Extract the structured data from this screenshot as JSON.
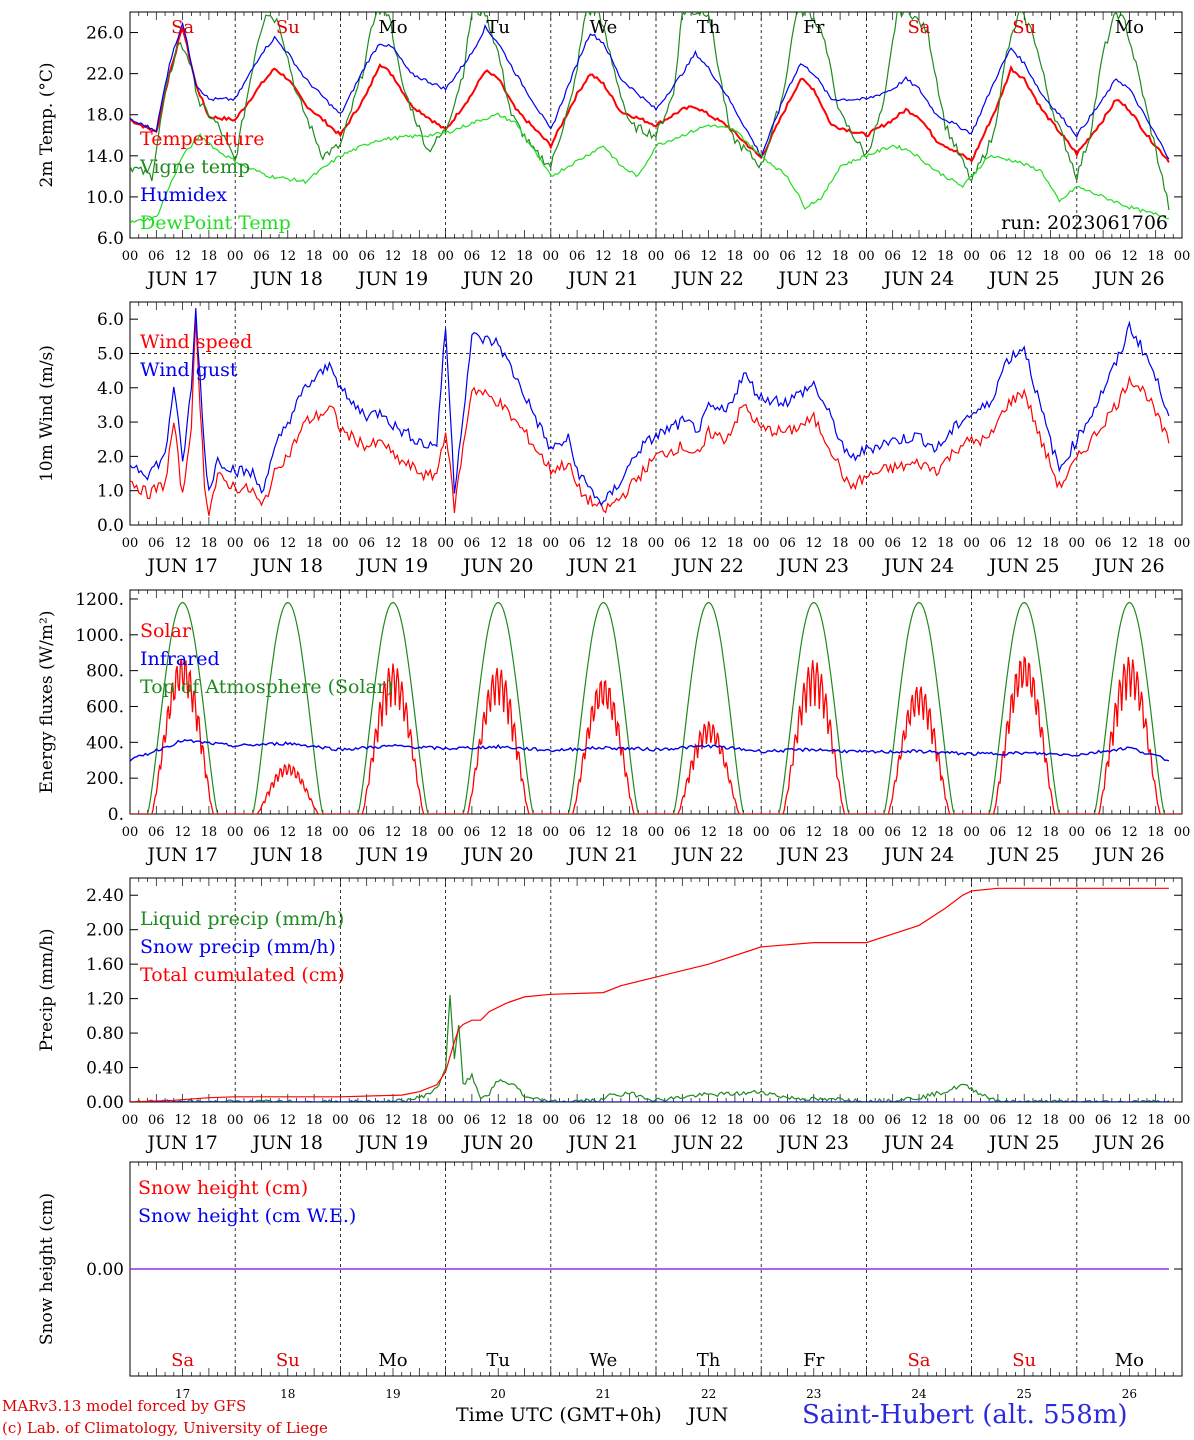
{
  "run_label": "run: 2023061706",
  "hour_ticks": [
    "00",
    "06",
    "12",
    "18"
  ],
  "last_tick": "00",
  "days": [
    "JUN 17",
    "JUN 18",
    "JUN 19",
    "JUN 20",
    "JUN 21",
    "JUN 22",
    "JUN 23",
    "JUN 24",
    "JUN 25",
    "JUN 26"
  ],
  "weekdays": [
    "Sa",
    "Su",
    "Mo",
    "Tu",
    "We",
    "Th",
    "Fr",
    "Sa",
    "Su",
    "Mo"
  ],
  "weekday_colors": [
    "#e00000",
    "#e00000",
    "#000000",
    "#000000",
    "#000000",
    "#000000",
    "#000000",
    "#e00000",
    "#e00000",
    "#000000"
  ],
  "day_numbers": [
    "17",
    "18",
    "19",
    "20",
    "21",
    "22",
    "23",
    "24",
    "25",
    "26"
  ],
  "colors": {
    "red": "#ff0000",
    "green": "#1f8a1f",
    "blue": "#0000ee",
    "lightgreen": "#22dd22",
    "purple": "#8a2be2"
  },
  "footer": {
    "credit_line1": "MARv3.13 model forced by GFS",
    "credit_line2": "(c) Lab. of Climatology, University of Liege",
    "x_title": "Time UTC (GMT+0h)",
    "x_month": "JUN",
    "station": "Saint-Hubert (alt. 558m)"
  },
  "chart_data": [
    {
      "type": "line",
      "ylabel": "2m Temp. (°C)",
      "ylim": [
        6,
        28
      ],
      "yticks": [
        "6.0",
        "10.0",
        "14.0",
        "18.0",
        "22.0",
        "26.0"
      ],
      "x_unit": "hours since Jun 17 00 UTC",
      "series": [
        {
          "name": "Temperature",
          "color": "red",
          "x": [
            0,
            6,
            9,
            12,
            15,
            18,
            24,
            30,
            33,
            36,
            40,
            48,
            54,
            57,
            60,
            64,
            72,
            78,
            81,
            84,
            88,
            96,
            102,
            105,
            108,
            112,
            120,
            126,
            129,
            132,
            136,
            144,
            150,
            153,
            156,
            160,
            168,
            174,
            177,
            180,
            184,
            192,
            198,
            201,
            204,
            208,
            216,
            222,
            225,
            228,
            232,
            237
          ],
          "y": [
            17.5,
            16.3,
            22,
            26.5,
            21,
            17.8,
            17.5,
            21,
            22.5,
            21.5,
            19,
            16,
            20,
            23,
            21.8,
            19,
            16.5,
            20,
            22.3,
            21.5,
            18.5,
            15,
            20,
            22,
            21,
            18.3,
            17,
            18.5,
            18.8,
            18,
            17,
            13.8,
            19,
            21.5,
            20.5,
            17,
            16,
            17.5,
            18.5,
            17.8,
            15.5,
            13.5,
            19,
            22.5,
            21.5,
            18.5,
            14.2,
            17.5,
            19.5,
            18.5,
            16,
            13.5
          ]
        },
        {
          "name": "Vigne temp",
          "color": "green",
          "x": [
            0,
            5,
            8,
            11,
            13,
            16,
            20,
            24,
            29,
            31,
            34,
            38,
            44,
            48,
            53,
            56,
            59,
            62,
            68,
            72,
            76,
            78,
            81,
            84,
            87,
            92,
            96,
            101,
            104,
            107,
            110,
            114,
            120,
            124,
            126,
            129,
            132,
            137,
            144,
            149,
            152,
            155,
            158,
            162,
            168,
            172,
            175,
            178,
            182,
            186,
            192,
            197,
            200,
            203,
            206,
            210,
            216,
            219,
            222,
            225,
            227,
            230,
            237
          ],
          "y": [
            13,
            12,
            20,
            25,
            24,
            19,
            17,
            13.5,
            25,
            28,
            27,
            20,
            14,
            15,
            22,
            28,
            28,
            21,
            14.5,
            16.5,
            22,
            28,
            28,
            24,
            18,
            14.5,
            13,
            20,
            28,
            28,
            23,
            17,
            16,
            20,
            28,
            28,
            28,
            16,
            13,
            20,
            28,
            28,
            26,
            18,
            14,
            19,
            28,
            28,
            26,
            17,
            11.5,
            16,
            24,
            28,
            26,
            19,
            12,
            16,
            24,
            28,
            27,
            22,
            9
          ]
        },
        {
          "name": "Humidex",
          "color": "blue",
          "x": [
            0,
            6,
            9,
            12,
            15,
            18,
            24,
            30,
            33,
            36,
            40,
            48,
            54,
            57,
            60,
            64,
            72,
            78,
            81,
            84,
            88,
            96,
            102,
            105,
            108,
            112,
            120,
            126,
            129,
            132,
            136,
            144,
            150,
            153,
            156,
            160,
            168,
            174,
            177,
            180,
            184,
            192,
            198,
            201,
            204,
            208,
            216,
            222,
            225,
            228,
            232,
            237
          ],
          "y": [
            17.5,
            16.5,
            23,
            27,
            21,
            19.5,
            19.5,
            24,
            25.5,
            24,
            21.5,
            18,
            23,
            25,
            24.5,
            22,
            20.5,
            24,
            26.5,
            25,
            22,
            16.5,
            23,
            26,
            25,
            21.5,
            18.5,
            22,
            24,
            22.5,
            20,
            14,
            20.5,
            23,
            22,
            19.5,
            19.5,
            20.5,
            21.5,
            20.5,
            18,
            16.2,
            22,
            24.5,
            23,
            20,
            16,
            19.5,
            21.5,
            20.5,
            17.5,
            13.8
          ]
        },
        {
          "name": "DewPoint Temp",
          "color": "lightgreen",
          "x": [
            0,
            6,
            12,
            16,
            20,
            26,
            32,
            40,
            48,
            56,
            62,
            68,
            72,
            80,
            84,
            88,
            96,
            104,
            108,
            112,
            116,
            120,
            126,
            132,
            138,
            144,
            150,
            154,
            158,
            162,
            168,
            174,
            178,
            184,
            190,
            196,
            202,
            208,
            212,
            216,
            222,
            228,
            232,
            237
          ],
          "y": [
            7.5,
            8,
            14,
            16,
            14.5,
            13,
            12,
            11.5,
            14,
            15.5,
            15.8,
            16,
            16.2,
            17.5,
            18,
            17.2,
            12,
            14,
            15,
            13,
            12,
            15,
            16,
            17,
            16.5,
            14,
            12,
            9,
            10,
            13,
            14,
            15,
            14.5,
            12.5,
            11,
            14,
            13.5,
            12.5,
            9.5,
            11,
            10,
            9,
            8.5,
            8
          ]
        }
      ]
    },
    {
      "type": "line",
      "ylabel": "10m Wind (m/s)",
      "ylim": [
        0,
        6.5
      ],
      "yticks": [
        "0.0",
        "1.0",
        "2.0",
        "3.0",
        "4.0",
        "5.0",
        "6.0"
      ],
      "dashed_level": 5.0,
      "series": [
        {
          "name": "Wind speed",
          "color": "red",
          "x": [
            0,
            4,
            8,
            10,
            12,
            14,
            15,
            17,
            18,
            20,
            24,
            28,
            30,
            34,
            36,
            40,
            46,
            48,
            50,
            54,
            58,
            60,
            64,
            68,
            70,
            72,
            74,
            78,
            84,
            90,
            96,
            100,
            102,
            104,
            108,
            112,
            116,
            120,
            126,
            130,
            132,
            136,
            140,
            144,
            150,
            156,
            160,
            164,
            168,
            172,
            180,
            184,
            190,
            196,
            200,
            204,
            208,
            212,
            216,
            220,
            226,
            228,
            232,
            237
          ],
          "y": [
            1.3,
            0.9,
            1.2,
            3,
            0.8,
            3,
            5.9,
            1.2,
            0.4,
            1.4,
            1.1,
            1.0,
            0.5,
            1.8,
            2.0,
            3.0,
            3.4,
            2.8,
            2.6,
            2.3,
            2.4,
            2.0,
            1.7,
            1.4,
            1.5,
            2.8,
            0.5,
            4.0,
            3.6,
            2.7,
            1.6,
            1.8,
            1.1,
            0.8,
            0.4,
            0.8,
            1.4,
            2.0,
            2.3,
            2.0,
            2.7,
            2.5,
            3.5,
            2.8,
            2.7,
            3.1,
            2.2,
            1.1,
            1.4,
            1.6,
            1.8,
            1.6,
            2.4,
            2.5,
            3.5,
            3.9,
            2.4,
            1.1,
            1.9,
            2.6,
            3.7,
            4.3,
            3.8,
            2.4
          ]
        },
        {
          "name": "Wind gust",
          "color": "blue",
          "x": [
            0,
            4,
            8,
            10,
            12,
            14,
            15,
            17,
            18,
            20,
            24,
            28,
            30,
            34,
            36,
            40,
            46,
            48,
            50,
            54,
            58,
            60,
            64,
            68,
            70,
            72,
            74,
            78,
            84,
            90,
            96,
            100,
            102,
            104,
            108,
            112,
            116,
            120,
            126,
            130,
            132,
            136,
            140,
            144,
            150,
            156,
            160,
            164,
            168,
            172,
            180,
            184,
            190,
            196,
            200,
            204,
            208,
            212,
            216,
            220,
            226,
            228,
            232,
            237
          ],
          "y": [
            1.8,
            1.5,
            2.0,
            4.1,
            1.8,
            4.0,
            6.3,
            2.2,
            1.0,
            1.9,
            1.6,
            1.5,
            1.0,
            2.5,
            3.0,
            4.0,
            4.7,
            4.0,
            3.6,
            3.2,
            3.3,
            2.9,
            2.6,
            2.3,
            2.4,
            5.8,
            1.0,
            5.5,
            5.3,
            3.8,
            2.2,
            2.5,
            1.6,
            1.2,
            0.6,
            1.3,
            2.2,
            2.6,
            3.0,
            2.8,
            3.4,
            3.3,
            4.4,
            3.7,
            3.6,
            4.1,
            3.1,
            1.9,
            2.2,
            2.4,
            2.6,
            2.2,
            3.1,
            3.5,
            4.8,
            5.2,
            3.3,
            1.6,
            2.5,
            3.4,
            5.0,
            5.8,
            4.9,
            3.3
          ]
        }
      ]
    },
    {
      "type": "line",
      "ylabel": "Energy fluxes (W/m²)",
      "ylim": [
        0,
        1250
      ],
      "yticks": [
        "0.",
        "200.",
        "400.",
        "600.",
        "800.",
        "1000.",
        "1200."
      ],
      "toa_peak": 1180,
      "solar_peaks": [
        880,
        280,
        840,
        820,
        760,
        520,
        860,
        720,
        890,
        880
      ],
      "series": [
        {
          "name": "Solar",
          "color": "red"
        },
        {
          "name": "Infrared",
          "color": "blue",
          "x": [
            0,
            12,
            24,
            36,
            48,
            60,
            72,
            84,
            96,
            108,
            120,
            132,
            144,
            156,
            168,
            180,
            192,
            204,
            216,
            228,
            237
          ],
          "y": [
            300,
            410,
            380,
            395,
            360,
            380,
            365,
            375,
            355,
            370,
            360,
            380,
            350,
            360,
            345,
            350,
            335,
            340,
            330,
            370,
            300
          ]
        },
        {
          "name": "Top of Atmosphere (Solar)",
          "color": "green"
        }
      ]
    },
    {
      "type": "line",
      "ylabel": "Precip (mm/h)",
      "ylim": [
        0,
        2.6
      ],
      "yticks": [
        "0.00",
        "0.40",
        "0.80",
        "1.20",
        "1.60",
        "2.00",
        "2.40"
      ],
      "series": [
        {
          "name": "Liquid precip (mm/h)",
          "color": "green",
          "x": [
            0,
            60,
            64,
            66,
            68,
            70,
            72,
            73,
            74,
            75,
            76,
            78,
            80,
            82,
            84,
            88,
            90,
            96,
            108,
            110,
            112,
            114,
            118,
            120,
            130,
            140,
            144,
            150,
            160,
            162,
            168,
            180,
            186,
            190,
            192,
            196,
            200,
            237
          ],
          "y": [
            0,
            0,
            0.03,
            0.05,
            0.1,
            0.15,
            0.4,
            1.25,
            0.5,
            0.9,
            0.2,
            0.3,
            0.05,
            0.1,
            0.25,
            0.2,
            0.05,
            0,
            0.02,
            0.1,
            0.08,
            0.1,
            0.05,
            0.02,
            0.08,
            0.1,
            0.12,
            0.05,
            0.02,
            0.04,
            0,
            0.05,
            0.12,
            0.2,
            0.15,
            0.05,
            0,
            0
          ]
        },
        {
          "name": "Snow precip (mm/h)",
          "color": "blue",
          "x": [
            0,
            237
          ],
          "y": [
            0,
            0
          ]
        },
        {
          "name": "Total cumulated (cm)",
          "color": "red",
          "x": [
            0,
            10,
            18,
            24,
            48,
            62,
            66,
            70,
            72,
            74,
            75,
            76,
            78,
            80,
            82,
            86,
            90,
            96,
            108,
            112,
            120,
            132,
            144,
            156,
            168,
            180,
            186,
            190,
            192,
            198,
            200,
            237
          ],
          "y": [
            0,
            0.02,
            0.05,
            0.06,
            0.06,
            0.08,
            0.12,
            0.2,
            0.35,
            0.7,
            0.85,
            0.9,
            0.95,
            0.95,
            1.05,
            1.15,
            1.22,
            1.25,
            1.27,
            1.35,
            1.45,
            1.6,
            1.8,
            1.85,
            1.85,
            2.05,
            2.25,
            2.4,
            2.45,
            2.48,
            2.48,
            2.48
          ]
        }
      ]
    },
    {
      "type": "line",
      "ylabel": "Snow height (cm)",
      "ylim": [
        -1,
        1
      ],
      "yticks": [
        "0.00"
      ],
      "series": [
        {
          "name": "Snow height (cm)",
          "color": "red",
          "x": [
            0,
            237
          ],
          "y": [
            0,
            0
          ]
        },
        {
          "name": "Snow height (cm W.E.)",
          "color": "blue",
          "x": [
            0,
            237
          ],
          "y": [
            0,
            0
          ]
        }
      ]
    }
  ]
}
